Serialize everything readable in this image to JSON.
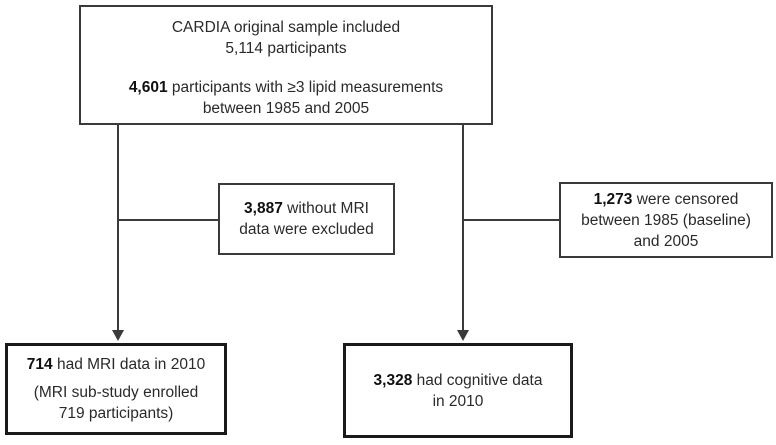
{
  "colors": {
    "background": "#ffffff",
    "box_border": "#3a3a3a",
    "thick_box_border": "#1a1a1a",
    "line": "#3a3a3a",
    "text": "#2a2a2a",
    "bold_text": "#101010"
  },
  "flowchart": {
    "top_box": {
      "lines": [
        {
          "bold": "",
          "text": "CARDIA original sample included"
        },
        {
          "bold": "",
          "text": "5,114 participants"
        },
        {
          "bold": "4,601",
          "text": " participants with ≥3 lipid measurements"
        },
        {
          "bold": "",
          "text": "between 1985 and 2005"
        }
      ]
    },
    "mri_excluded_box": {
      "lines": [
        {
          "bold": "3,887",
          "text": " without MRI"
        },
        {
          "bold": "",
          "text": "data were excluded"
        }
      ]
    },
    "censored_box": {
      "lines": [
        {
          "bold": "1,273",
          "text": " were censored"
        },
        {
          "bold": "",
          "text": "between 1985 (baseline)"
        },
        {
          "bold": "",
          "text": "and 2005"
        }
      ]
    },
    "mri_2010_box": {
      "lines": [
        {
          "bold": "714",
          "text": " had MRI data in 2010"
        },
        {
          "bold": "",
          "text": "(MRI sub-study enrolled"
        },
        {
          "bold": "",
          "text": "719 participants)"
        }
      ]
    },
    "cognitive_box": {
      "lines": [
        {
          "bold": "3,328",
          "text": " had cognitive data"
        },
        {
          "bold": "",
          "text": "in 2010"
        }
      ]
    }
  }
}
